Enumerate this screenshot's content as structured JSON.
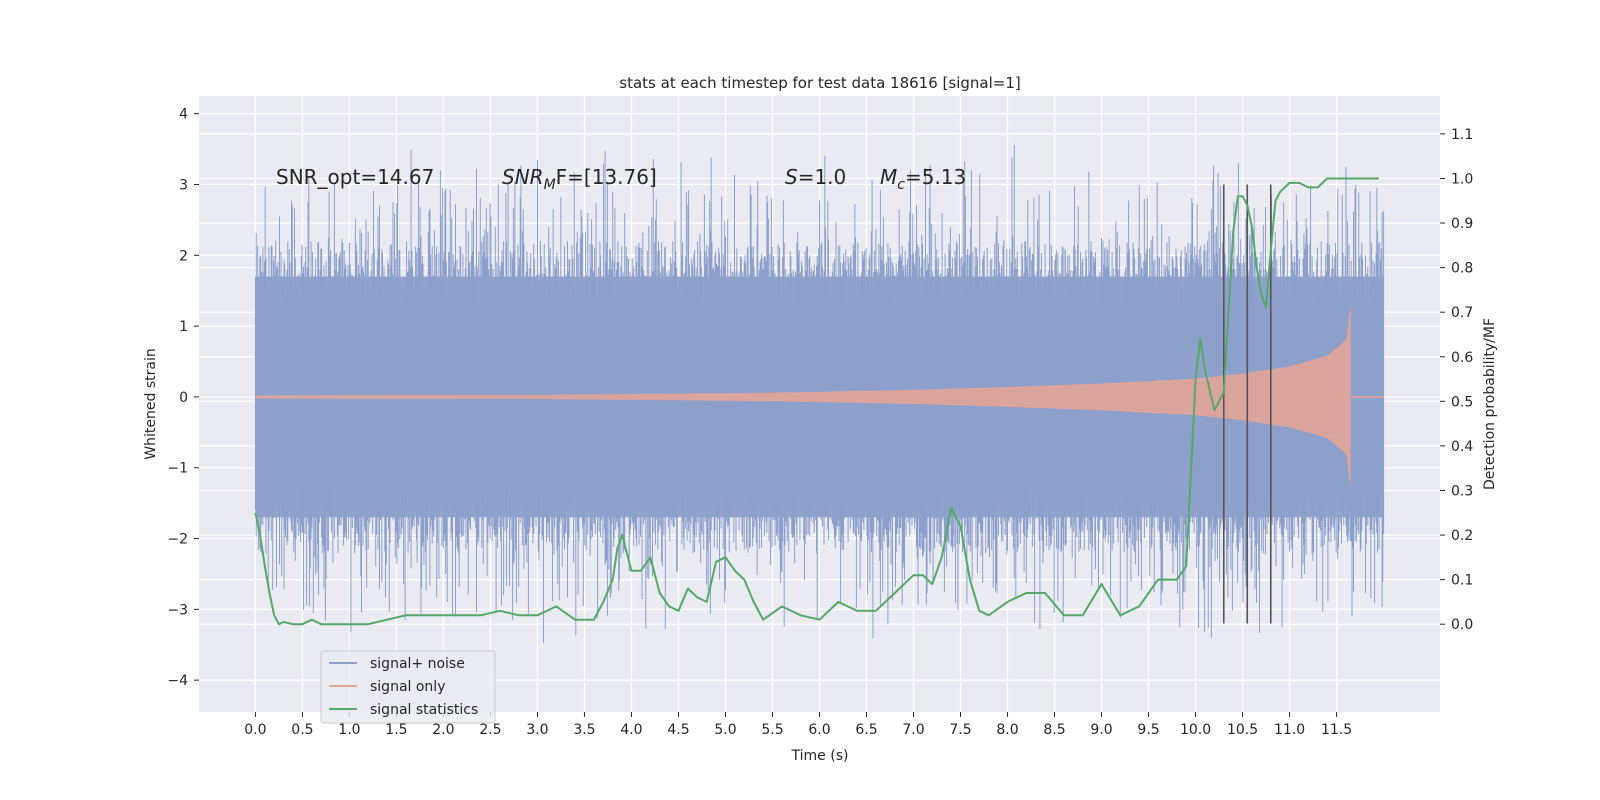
{
  "chart_data": {
    "type": "line",
    "title": "stats at each timestep for test data 18616 [signal=1]",
    "xlabel": "Time (s)",
    "ylabel": "Whitened strain",
    "y2label": "Detection probability/MF",
    "xlim": [
      -0.6,
      12.6
    ],
    "ylim": [
      -4.45,
      4.25
    ],
    "y2lim": [
      -0.197,
      1.185
    ],
    "xticks": [
      0.0,
      0.5,
      1.0,
      1.5,
      2.0,
      2.5,
      3.0,
      3.5,
      4.0,
      4.5,
      5.0,
      5.5,
      6.0,
      6.5,
      7.0,
      7.5,
      8.0,
      8.5,
      9.0,
      9.5,
      10.0,
      10.5,
      11.0,
      11.5
    ],
    "xtick_labels": [
      "0.0",
      "0.5",
      "1.0",
      "1.5",
      "2.0",
      "2.5",
      "3.0",
      "3.5",
      "4.0",
      "4.5",
      "5.0",
      "5.5",
      "6.0",
      "6.5",
      "7.0",
      "7.5",
      "8.0",
      "8.5",
      "9.0",
      "9.5",
      "10.0",
      "10.5",
      "11.0",
      "11.5"
    ],
    "yticks": [
      4,
      3,
      2,
      1,
      0,
      -1,
      -2,
      -3,
      -4
    ],
    "ytick_labels": [
      "4",
      "3",
      "2",
      "1",
      "0",
      "−1",
      "−2",
      "−3",
      "−4"
    ],
    "y2ticks": [
      1.1,
      1.0,
      0.9,
      0.8,
      0.7,
      0.6,
      0.5,
      0.4,
      0.3,
      0.2,
      0.1,
      0.0
    ],
    "y2tick_labels": [
      "1.1",
      "1.0",
      "0.9",
      "0.8",
      "0.7",
      "0.6",
      "0.5",
      "0.4",
      "0.3",
      "0.2",
      "0.1",
      "0.0"
    ],
    "grid": true,
    "legend_position": "lower-left",
    "annotations": {
      "snr_opt": "SNR_opt=14.67",
      "snr_mf_main": "SNR",
      "snr_mf_sub": "M",
      "snr_mf_tail": "F=[13.76]",
      "s_main": "S",
      "s_tail": "=1.0",
      "mc_main": "M",
      "mc_sub": "c",
      "mc_tail": "=5.13"
    },
    "series": [
      {
        "name": "signal+ noise",
        "color": "#8da0cb",
        "kind": "noise",
        "x_start": 0.0,
        "x_end": 12.0,
        "band_typical": 1.7,
        "spike_max": 3.9,
        "spike_min": -3.75
      },
      {
        "name": "signal only",
        "color": "#e7a595",
        "kind": "chirp",
        "x_start": 0.0,
        "x_end": 11.7,
        "envelope": [
          [
            0,
            0.02
          ],
          [
            3,
            0.03
          ],
          [
            5.5,
            0.06
          ],
          [
            7,
            0.1
          ],
          [
            8,
            0.14
          ],
          [
            9,
            0.19
          ],
          [
            10,
            0.26
          ],
          [
            10.5,
            0.33
          ],
          [
            11,
            0.43
          ],
          [
            11.4,
            0.58
          ],
          [
            11.6,
            0.8
          ],
          [
            11.65,
            1.3
          ]
        ]
      },
      {
        "name": "signal statistics",
        "color": "#55a868",
        "kind": "line",
        "axis": "right",
        "x": [
          0.0,
          0.05,
          0.1,
          0.15,
          0.2,
          0.25,
          0.3,
          0.4,
          0.5,
          0.6,
          0.7,
          0.8,
          0.9,
          1.0,
          1.2,
          1.4,
          1.6,
          1.8,
          2.0,
          2.2,
          2.4,
          2.6,
          2.8,
          3.0,
          3.2,
          3.4,
          3.6,
          3.7,
          3.8,
          3.85,
          3.9,
          4.0,
          4.1,
          4.2,
          4.3,
          4.4,
          4.5,
          4.6,
          4.7,
          4.8,
          4.9,
          5.0,
          5.1,
          5.2,
          5.3,
          5.4,
          5.6,
          5.8,
          6.0,
          6.2,
          6.4,
          6.6,
          6.8,
          7.0,
          7.1,
          7.2,
          7.3,
          7.4,
          7.5,
          7.6,
          7.7,
          7.8,
          8.0,
          8.2,
          8.4,
          8.6,
          8.8,
          9.0,
          9.2,
          9.4,
          9.6,
          9.7,
          9.8,
          9.9,
          10.0,
          10.05,
          10.1,
          10.2,
          10.3,
          10.4,
          10.45,
          10.5,
          10.55,
          10.6,
          10.65,
          10.7,
          10.75,
          10.8,
          10.85,
          10.9,
          11.0,
          11.1,
          11.2,
          11.3,
          11.4,
          11.5,
          11.6,
          11.7,
          11.8,
          11.9,
          11.95
        ],
        "y": [
          0.25,
          0.2,
          0.13,
          0.07,
          0.02,
          0.0,
          0.005,
          0.0,
          0.0,
          0.01,
          0.0,
          0.0,
          0.0,
          0.0,
          0.0,
          0.01,
          0.02,
          0.02,
          0.02,
          0.02,
          0.02,
          0.03,
          0.02,
          0.02,
          0.04,
          0.01,
          0.01,
          0.05,
          0.1,
          0.17,
          0.2,
          0.12,
          0.12,
          0.15,
          0.07,
          0.04,
          0.03,
          0.08,
          0.06,
          0.05,
          0.14,
          0.15,
          0.12,
          0.1,
          0.05,
          0.01,
          0.04,
          0.02,
          0.01,
          0.05,
          0.03,
          0.03,
          0.07,
          0.11,
          0.11,
          0.09,
          0.15,
          0.26,
          0.22,
          0.1,
          0.03,
          0.02,
          0.05,
          0.07,
          0.07,
          0.02,
          0.02,
          0.09,
          0.02,
          0.04,
          0.1,
          0.1,
          0.1,
          0.13,
          0.55,
          0.64,
          0.57,
          0.48,
          0.52,
          0.88,
          0.96,
          0.96,
          0.94,
          0.89,
          0.8,
          0.74,
          0.71,
          0.84,
          0.95,
          0.97,
          0.99,
          0.99,
          0.98,
          0.98,
          1.0,
          1.0,
          1.0,
          1.0,
          1.0,
          1.0,
          1.0
        ]
      }
    ],
    "vertical_markers": [
      {
        "x": 10.3,
        "ymin": -3.2,
        "ymax": 3.0
      },
      {
        "x": 10.55,
        "ymin": -3.2,
        "ymax": 3.0
      },
      {
        "x": 10.8,
        "ymin": -3.2,
        "ymax": 3.0
      }
    ]
  }
}
